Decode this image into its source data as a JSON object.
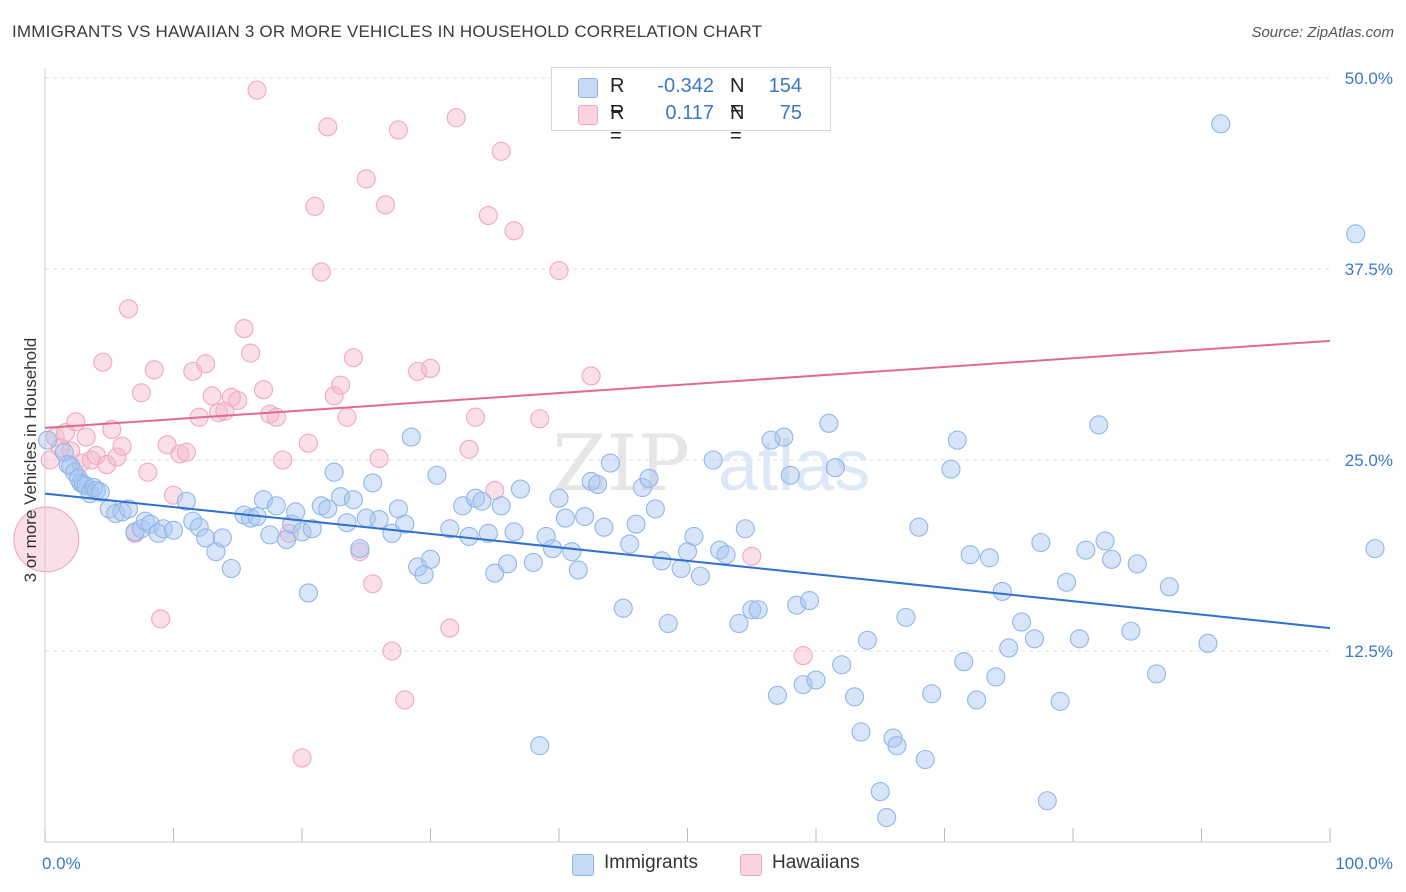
{
  "title": "IMMIGRANTS VS HAWAIIAN 3 OR MORE VEHICLES IN HOUSEHOLD CORRELATION CHART",
  "source": "Source: ZipAtlas.com",
  "watermark": {
    "left": "ZIP",
    "right": "atlas"
  },
  "legend_stats": [
    {
      "r_label": "R =",
      "r_value": "-0.342",
      "n_label": "N =",
      "n_value": "154",
      "color": "#a8c6f0"
    },
    {
      "r_label": "R =",
      "r_value": "0.117",
      "n_label": "N =",
      "n_value": "75",
      "color": "#f5b8cb"
    }
  ],
  "legend_series": [
    {
      "label": "Immigrants",
      "color": "#a8c6f0"
    },
    {
      "label": "Hawaiians",
      "color": "#f5b8cb"
    }
  ],
  "colors": {
    "blue_line": "#2f6fcf",
    "pink_line": "#e06a93",
    "blue_point": "#8fb6ea",
    "pink_point": "#f2a7bf",
    "axis_label": "#3a78c8"
  },
  "chart_data": {
    "type": "scatter",
    "title": "IMMIGRANTS VS HAWAIIAN 3 OR MORE VEHICLES IN HOUSEHOLD CORRELATION CHART",
    "xlabel": "",
    "ylabel": "3 or more Vehicles in Household",
    "xlim": [
      0,
      100
    ],
    "ylim": [
      0,
      50
    ],
    "x_tick_labels": [
      "0.0%",
      "100.0%"
    ],
    "y_ticks": [
      12.5,
      25.0,
      37.5,
      50.0
    ],
    "y_tick_labels": [
      "12.5%",
      "25.0%",
      "37.5%",
      "50.0%"
    ],
    "grid": true,
    "legend_position": "top-center",
    "series": [
      {
        "name": "Immigrants",
        "trend": {
          "x": [
            0,
            100
          ],
          "y": [
            22.8,
            14.0
          ]
        },
        "points": [
          [
            0.2,
            26.3,
            1
          ],
          [
            1.5,
            25.5,
            1
          ],
          [
            1.8,
            24.7,
            1
          ],
          [
            2.0,
            24.6,
            1
          ],
          [
            2.3,
            24.2,
            1
          ],
          [
            2.6,
            23.8,
            1
          ],
          [
            2.8,
            23.5,
            1
          ],
          [
            3.0,
            23.4,
            1
          ],
          [
            3.2,
            23.3,
            1
          ],
          [
            3.5,
            22.8,
            1
          ],
          [
            3.8,
            23.2,
            1
          ],
          [
            4.0,
            23.0,
            1
          ],
          [
            4.3,
            22.9,
            1
          ],
          [
            5.0,
            21.8,
            1
          ],
          [
            5.5,
            21.5,
            1
          ],
          [
            6.0,
            21.6,
            1
          ],
          [
            6.5,
            21.8,
            1
          ],
          [
            7.0,
            20.3,
            1
          ],
          [
            7.5,
            20.5,
            1
          ],
          [
            7.8,
            21.0,
            1
          ],
          [
            8.2,
            20.8,
            1
          ],
          [
            8.8,
            20.2,
            1
          ],
          [
            9.2,
            20.5,
            1
          ],
          [
            10.0,
            20.4,
            1
          ],
          [
            11.0,
            22.3,
            1
          ],
          [
            11.5,
            21.0,
            1
          ],
          [
            12.0,
            20.6,
            1
          ],
          [
            12.5,
            19.9,
            1
          ],
          [
            13.3,
            19.0,
            1
          ],
          [
            13.8,
            19.9,
            1
          ],
          [
            14.5,
            17.9,
            1
          ],
          [
            15.5,
            21.4,
            1
          ],
          [
            16.0,
            21.2,
            1
          ],
          [
            16.5,
            21.3,
            1
          ],
          [
            17.0,
            22.4,
            1
          ],
          [
            17.5,
            20.1,
            1
          ],
          [
            18.0,
            22.0,
            1
          ],
          [
            18.8,
            19.8,
            1
          ],
          [
            19.2,
            20.8,
            1
          ],
          [
            19.5,
            21.6,
            1
          ],
          [
            20.0,
            20.3,
            1
          ],
          [
            20.5,
            16.3,
            1
          ],
          [
            20.8,
            20.5,
            1
          ],
          [
            21.5,
            22.0,
            1
          ],
          [
            22.0,
            21.8,
            1
          ],
          [
            22.5,
            24.2,
            1
          ],
          [
            23.0,
            22.6,
            1
          ],
          [
            23.5,
            20.9,
            1
          ],
          [
            24.0,
            22.4,
            1
          ],
          [
            24.5,
            19.2,
            1
          ],
          [
            25.0,
            21.2,
            1
          ],
          [
            25.5,
            23.5,
            1
          ],
          [
            26.0,
            21.1,
            1
          ],
          [
            27.0,
            20.2,
            1
          ],
          [
            27.5,
            21.8,
            1
          ],
          [
            28.0,
            20.8,
            1
          ],
          [
            28.5,
            26.5,
            1
          ],
          [
            29.0,
            18.0,
            1
          ],
          [
            29.5,
            17.5,
            1
          ],
          [
            30.0,
            18.5,
            1
          ],
          [
            30.5,
            24.0,
            1
          ],
          [
            31.5,
            20.5,
            1
          ],
          [
            32.5,
            22.0,
            1
          ],
          [
            33.0,
            20.0,
            1
          ],
          [
            33.5,
            22.5,
            1
          ],
          [
            34.0,
            22.3,
            1
          ],
          [
            34.5,
            20.2,
            1
          ],
          [
            35.0,
            17.6,
            1
          ],
          [
            35.5,
            22.0,
            1
          ],
          [
            36.0,
            18.2,
            1
          ],
          [
            36.5,
            20.3,
            1
          ],
          [
            37.0,
            23.1,
            1
          ],
          [
            38.0,
            18.3,
            1
          ],
          [
            38.5,
            6.3,
            1
          ],
          [
            39.0,
            20.0,
            1
          ],
          [
            39.5,
            19.2,
            1
          ],
          [
            40.0,
            22.5,
            1
          ],
          [
            40.5,
            21.2,
            1
          ],
          [
            41.0,
            19.0,
            1
          ],
          [
            41.5,
            17.8,
            1
          ],
          [
            42.0,
            21.3,
            1
          ],
          [
            42.5,
            23.6,
            1
          ],
          [
            43.0,
            23.4,
            1
          ],
          [
            43.5,
            20.6,
            1
          ],
          [
            44.0,
            24.8,
            1
          ],
          [
            45.0,
            15.3,
            1
          ],
          [
            45.5,
            19.5,
            1
          ],
          [
            46.0,
            20.8,
            1
          ],
          [
            46.5,
            23.2,
            1
          ],
          [
            47.0,
            23.8,
            1
          ],
          [
            47.5,
            21.8,
            1
          ],
          [
            48.0,
            18.4,
            1
          ],
          [
            48.5,
            14.3,
            1
          ],
          [
            49.5,
            17.9,
            1
          ],
          [
            50.0,
            19.0,
            1
          ],
          [
            50.5,
            20.0,
            1
          ],
          [
            51.0,
            17.4,
            1
          ],
          [
            52.0,
            25.0,
            1
          ],
          [
            52.5,
            19.1,
            1
          ],
          [
            53.0,
            18.8,
            1
          ],
          [
            54.0,
            14.3,
            1
          ],
          [
            54.5,
            20.5,
            1
          ],
          [
            55.0,
            15.2,
            1
          ],
          [
            55.5,
            15.2,
            1
          ],
          [
            56.5,
            26.3,
            1
          ],
          [
            57.0,
            9.6,
            1
          ],
          [
            57.5,
            26.5,
            1
          ],
          [
            58.0,
            24.0,
            1
          ],
          [
            58.5,
            15.5,
            1
          ],
          [
            59.0,
            10.3,
            1
          ],
          [
            59.5,
            15.8,
            1
          ],
          [
            60.0,
            10.6,
            1
          ],
          [
            61.0,
            27.4,
            1
          ],
          [
            61.5,
            24.5,
            1
          ],
          [
            62.0,
            11.6,
            1
          ],
          [
            63.0,
            9.5,
            1
          ],
          [
            63.5,
            7.2,
            1
          ],
          [
            64.0,
            13.2,
            1
          ],
          [
            65.0,
            3.3,
            1
          ],
          [
            65.5,
            1.6,
            1
          ],
          [
            66.0,
            6.8,
            1
          ],
          [
            66.3,
            6.3,
            1
          ],
          [
            67.0,
            14.7,
            1
          ],
          [
            68.0,
            20.6,
            1
          ],
          [
            68.5,
            5.4,
            1
          ],
          [
            69.0,
            9.7,
            1
          ],
          [
            70.5,
            24.4,
            1
          ],
          [
            71.0,
            26.3,
            1
          ],
          [
            71.5,
            11.8,
            1
          ],
          [
            72.0,
            18.8,
            1
          ],
          [
            72.5,
            9.3,
            1
          ],
          [
            73.5,
            18.6,
            1
          ],
          [
            74.0,
            10.8,
            1
          ],
          [
            74.5,
            16.4,
            1
          ],
          [
            75.0,
            12.7,
            1
          ],
          [
            76.0,
            14.4,
            1
          ],
          [
            77.0,
            13.3,
            1
          ],
          [
            77.5,
            19.6,
            1
          ],
          [
            78.0,
            2.7,
            1
          ],
          [
            79.0,
            9.2,
            1
          ],
          [
            79.5,
            17.0,
            1
          ],
          [
            80.5,
            13.3,
            1
          ],
          [
            81.0,
            19.1,
            1
          ],
          [
            82.0,
            27.3,
            1
          ],
          [
            82.5,
            19.7,
            1
          ],
          [
            83.0,
            18.5,
            1
          ],
          [
            84.5,
            13.8,
            1
          ],
          [
            85.0,
            18.2,
            1
          ],
          [
            86.5,
            11.0,
            1
          ],
          [
            87.5,
            16.7,
            1
          ],
          [
            90.5,
            13.0,
            1
          ],
          [
            91.5,
            47.0,
            1
          ],
          [
            102.0,
            39.8,
            1
          ],
          [
            103.5,
            19.2,
            1
          ]
        ]
      },
      {
        "name": "Hawaiians",
        "trend": {
          "x": [
            0,
            100
          ],
          "y": [
            27.1,
            32.8
          ]
        },
        "points": [
          [
            0.1,
            19.8,
            3.6
          ],
          [
            0.4,
            25.0,
            1
          ],
          [
            0.8,
            26.5,
            1
          ],
          [
            1.2,
            25.8,
            1
          ],
          [
            1.6,
            26.8,
            1
          ],
          [
            2.0,
            25.6,
            1
          ],
          [
            2.4,
            27.5,
            1
          ],
          [
            2.8,
            24.8,
            1
          ],
          [
            3.2,
            26.5,
            1
          ],
          [
            3.6,
            25.0,
            1
          ],
          [
            4.0,
            25.3,
            1
          ],
          [
            4.5,
            31.4,
            1
          ],
          [
            4.8,
            24.7,
            1
          ],
          [
            5.2,
            27.0,
            1
          ],
          [
            5.6,
            25.2,
            1
          ],
          [
            6.0,
            25.9,
            1
          ],
          [
            6.5,
            34.9,
            1
          ],
          [
            7.0,
            20.2,
            1
          ],
          [
            7.5,
            29.4,
            1
          ],
          [
            8.0,
            24.2,
            1
          ],
          [
            8.5,
            30.9,
            1
          ],
          [
            9.0,
            14.6,
            1
          ],
          [
            9.5,
            26.0,
            1
          ],
          [
            10.0,
            22.7,
            1
          ],
          [
            10.5,
            25.4,
            1
          ],
          [
            11.0,
            25.5,
            1
          ],
          [
            11.5,
            30.8,
            1
          ],
          [
            12.0,
            27.8,
            1
          ],
          [
            12.5,
            31.3,
            1
          ],
          [
            13.0,
            29.2,
            1
          ],
          [
            13.5,
            28.1,
            1
          ],
          [
            14.0,
            28.2,
            1
          ],
          [
            14.5,
            29.1,
            1
          ],
          [
            15.0,
            28.9,
            1
          ],
          [
            15.5,
            33.6,
            1
          ],
          [
            16.0,
            32.0,
            1
          ],
          [
            16.5,
            49.2,
            1
          ],
          [
            17.0,
            29.6,
            1
          ],
          [
            17.5,
            28.0,
            1
          ],
          [
            18.0,
            27.8,
            1
          ],
          [
            18.5,
            25.0,
            1
          ],
          [
            19.0,
            20.2,
            1
          ],
          [
            20.0,
            5.5,
            1
          ],
          [
            20.5,
            26.1,
            1
          ],
          [
            21.0,
            41.6,
            1
          ],
          [
            21.5,
            37.3,
            1
          ],
          [
            22.0,
            46.8,
            1
          ],
          [
            22.5,
            29.2,
            1
          ],
          [
            23.0,
            29.9,
            1
          ],
          [
            23.5,
            27.8,
            1
          ],
          [
            24.0,
            31.7,
            1
          ],
          [
            24.5,
            19.0,
            1
          ],
          [
            25.0,
            43.4,
            1
          ],
          [
            25.5,
            16.9,
            1
          ],
          [
            26.0,
            25.1,
            1
          ],
          [
            26.5,
            41.7,
            1
          ],
          [
            27.0,
            12.5,
            1
          ],
          [
            27.5,
            46.6,
            1
          ],
          [
            28.0,
            9.3,
            1
          ],
          [
            29.0,
            30.8,
            1
          ],
          [
            30.0,
            31.0,
            1
          ],
          [
            31.5,
            14.0,
            1
          ],
          [
            32.0,
            47.4,
            1
          ],
          [
            33.0,
            25.7,
            1
          ],
          [
            33.5,
            27.8,
            1
          ],
          [
            34.5,
            41.0,
            1
          ],
          [
            35.0,
            23.0,
            1
          ],
          [
            35.5,
            45.2,
            1
          ],
          [
            36.5,
            40.0,
            1
          ],
          [
            38.5,
            27.7,
            1
          ],
          [
            40.0,
            37.4,
            1
          ],
          [
            42.5,
            30.5,
            1
          ],
          [
            43.0,
            48.6,
            1
          ],
          [
            55.0,
            18.7,
            1
          ],
          [
            59.0,
            12.2,
            1
          ]
        ]
      }
    ]
  }
}
